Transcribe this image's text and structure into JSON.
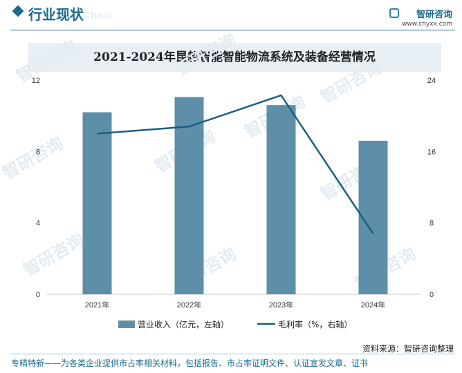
{
  "header": {
    "section_title": "行业现状",
    "ghost_text": "Chain",
    "logo_name": "智研咨询",
    "logo_url": "www.chyxx.com"
  },
  "colors": {
    "bar": "#5d8fa8",
    "line": "#1b5e80",
    "accent": "#1b6a8f"
  },
  "chart_data": {
    "type": "bar",
    "title": "2021-2024年昆船智能智能物流系统及装备经营情况",
    "categories": [
      "2021年",
      "2022年",
      "2023年",
      "2024年"
    ],
    "series": [
      {
        "name": "营业收入（亿元，左轴）",
        "type": "bar",
        "axis": "left",
        "values": [
          10.2,
          11.05,
          10.6,
          8.6
        ]
      },
      {
        "name": "毛利率（%，右轴）",
        "type": "line",
        "axis": "right",
        "values": [
          18.0,
          18.8,
          22.3,
          6.8
        ]
      }
    ],
    "left_axis": {
      "min": 0,
      "max": 12,
      "ticks": [
        0,
        4,
        8,
        12
      ]
    },
    "right_axis": {
      "min": 0,
      "max": 24,
      "ticks": [
        0,
        8,
        16,
        24
      ]
    },
    "grid": false,
    "legend_position": "bottom"
  },
  "footer": {
    "source": "资料来源：智研咨询整理",
    "note": "专精特新——为各类企业提供市占率相关材料，包括报告、市占率证明文件、认证宣发文章、证书"
  },
  "watermark": "智研咨询"
}
